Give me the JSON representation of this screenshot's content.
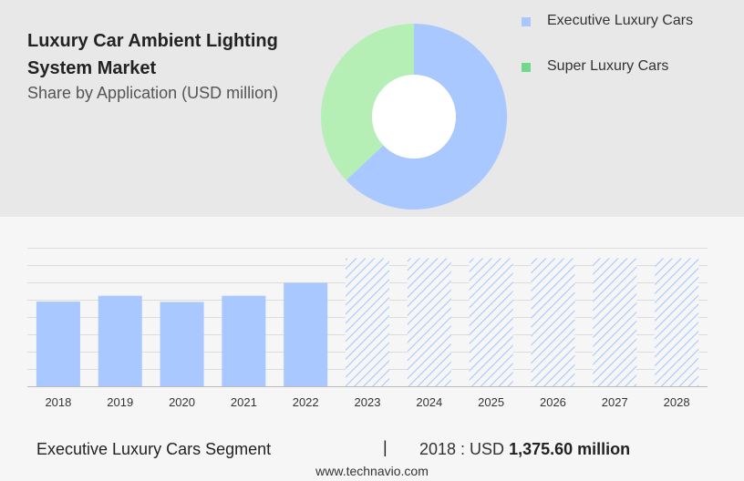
{
  "header": {
    "title": "Luxury Car Ambient Lighting System Market",
    "subtitle": "Share by Application (USD million)"
  },
  "chart_data": [
    {
      "type": "pie",
      "title": "Luxury Car Ambient Lighting System Market",
      "subtitle": "Share by Application (USD million)",
      "legend_position": "top-right",
      "series": [
        {
          "name": "Executive Luxury Cars",
          "value": 63,
          "color": "#a8c8ff"
        },
        {
          "name": "Super Luxury Cars",
          "value": 37,
          "color": "#b6efb6"
        }
      ],
      "legend_colors": [
        "#a8c8ff",
        "#74d88c"
      ]
    },
    {
      "type": "bar",
      "categories": [
        "2018",
        "2019",
        "2020",
        "2021",
        "2022",
        "2023",
        "2024",
        "2025",
        "2026",
        "2027",
        "2028"
      ],
      "series": [
        {
          "name": "Executive Luxury Cars",
          "values": [
            1375.6,
            1470,
            1370,
            1470,
            1680,
            null,
            null,
            null,
            null,
            null,
            null
          ]
        }
      ],
      "forecast_categories": [
        "2023",
        "2024",
        "2025",
        "2026",
        "2027",
        "2028"
      ],
      "forecast_level": 2080,
      "ylim": [
        0,
        2250
      ],
      "grid": true,
      "bar_color": "#a8c8ff",
      "forecast_color": "#a8c8ff"
    }
  ],
  "footer": {
    "segment": "Executive Luxury Cars Segment",
    "separator": "|",
    "value_prefix": "2018 : USD",
    "value": "1,375.60 million",
    "site": "www.technavio.com"
  }
}
